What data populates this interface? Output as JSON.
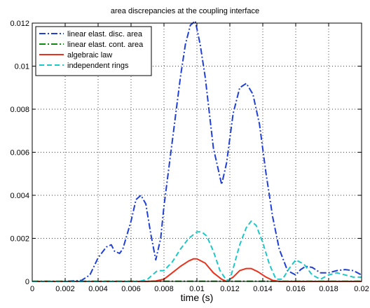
{
  "chart_data": {
    "type": "line",
    "title": "area discrepancies at the coupling interface",
    "xlabel": "time (s)",
    "ylabel": "",
    "xlim": [
      0,
      0.02
    ],
    "ylim": [
      0,
      0.012
    ],
    "x_ticks": [
      "0",
      "0.002",
      "0.004",
      "0.006",
      "0.008",
      "0.01",
      "0.012",
      "0.014",
      "0.016",
      "0.018",
      "0.02"
    ],
    "y_ticks": [
      "0",
      "0.002",
      "0.004",
      "0.006",
      "0.008",
      "0.01",
      "0.012"
    ],
    "grid": true,
    "legend_position": "top-left",
    "series": [
      {
        "name": "linear elast. disc. area",
        "color": "#1f3fd6",
        "style": "dashdot",
        "x": [
          0,
          0.002,
          0.003,
          0.0035,
          0.004,
          0.0045,
          0.0048,
          0.005,
          0.0053,
          0.0055,
          0.006,
          0.0063,
          0.0066,
          0.0069,
          0.0072,
          0.0075,
          0.0078,
          0.008,
          0.0085,
          0.009,
          0.0093,
          0.0096,
          0.0099,
          0.0102,
          0.0105,
          0.011,
          0.0115,
          0.0118,
          0.0122,
          0.0126,
          0.013,
          0.0134,
          0.0138,
          0.0142,
          0.0146,
          0.015,
          0.0155,
          0.016,
          0.0163,
          0.0166,
          0.017,
          0.0175,
          0.018,
          0.0185,
          0.019,
          0.0195,
          0.02
        ],
        "y": [
          0,
          0,
          5e-05,
          0.0003,
          0.0011,
          0.0016,
          0.0017,
          0.0014,
          0.0013,
          0.0015,
          0.0028,
          0.0038,
          0.004,
          0.0036,
          0.0022,
          0.001,
          0.002,
          0.0035,
          0.0065,
          0.0095,
          0.011,
          0.0119,
          0.0121,
          0.011,
          0.0095,
          0.0062,
          0.0045,
          0.0055,
          0.0078,
          0.009,
          0.0092,
          0.0087,
          0.0073,
          0.005,
          0.003,
          0.0015,
          0.0005,
          0.0003,
          0.00055,
          0.0007,
          0.00065,
          0.0004,
          0.0004,
          0.0005,
          0.00055,
          0.0005,
          0.0003
        ]
      },
      {
        "name": "linear elast. cont. area",
        "color": "#0f8a0f",
        "style": "dashdot",
        "x": [
          0,
          0.02
        ],
        "y": [
          1e-05,
          1e-05
        ]
      },
      {
        "name": "algebraic law",
        "color": "#e8321e",
        "style": "solid",
        "x": [
          0,
          0.007,
          0.0075,
          0.008,
          0.0085,
          0.009,
          0.0095,
          0.0098,
          0.01,
          0.0105,
          0.011,
          0.0115,
          0.0118,
          0.0122,
          0.0126,
          0.013,
          0.0133,
          0.0137,
          0.0142,
          0.0146,
          0.015,
          0.02
        ],
        "y": [
          0,
          0,
          2e-05,
          0.0001,
          0.0004,
          0.0007,
          0.00095,
          0.00105,
          0.00105,
          0.00085,
          0.0004,
          0.0001,
          0,
          0.0002,
          0.0005,
          0.0006,
          0.0006,
          0.00045,
          0.0002,
          5e-05,
          0,
          0
        ]
      },
      {
        "name": "independent rings",
        "color": "#1ec8c8",
        "style": "dashed",
        "x": [
          0,
          0.0065,
          0.007,
          0.0073,
          0.0076,
          0.008,
          0.0085,
          0.009,
          0.0095,
          0.01,
          0.0103,
          0.0106,
          0.011,
          0.0114,
          0.0118,
          0.012,
          0.0122,
          0.0126,
          0.013,
          0.0133,
          0.0136,
          0.014,
          0.0144,
          0.0148,
          0.0152,
          0.0156,
          0.016,
          0.0165,
          0.017,
          0.0175,
          0.018,
          0.0185,
          0.019,
          0.0195,
          0.02
        ],
        "y": [
          0,
          0,
          0.0001,
          0.0003,
          0.0005,
          0.0005,
          0.0009,
          0.0015,
          0.002,
          0.0023,
          0.0023,
          0.0021,
          0.0014,
          0.0005,
          5e-05,
          0.0001,
          0.0006,
          0.0017,
          0.0025,
          0.0028,
          0.0026,
          0.0018,
          0.0008,
          0.0001,
          0.0001,
          0.0006,
          0.001,
          0.0008,
          0.0003,
          0.0001,
          0.0003,
          0.0004,
          0.0003,
          0.0002,
          0.0002
        ]
      }
    ]
  }
}
